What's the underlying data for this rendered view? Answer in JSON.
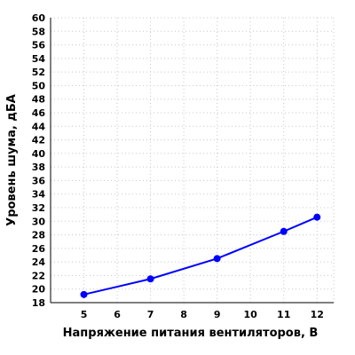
{
  "chart_data": {
    "type": "line",
    "title": "",
    "xlabel": "Напряжение питания вентиляторов, В",
    "ylabel": "Уровень шума, дБА",
    "xlim": [
      4,
      12.5
    ],
    "ylim": [
      18,
      60
    ],
    "x_ticks": [
      5,
      6,
      7,
      8,
      9,
      10,
      11,
      12
    ],
    "y_ticks": [
      18,
      20,
      22,
      24,
      26,
      28,
      30,
      32,
      34,
      36,
      38,
      40,
      42,
      44,
      46,
      48,
      50,
      52,
      54,
      56,
      58,
      60
    ],
    "grid": true,
    "legend": "none",
    "series": [
      {
        "color": "#0000ff",
        "x": [
          5,
          7,
          9,
          11,
          12
        ],
        "y": [
          19.2,
          21.5,
          24.5,
          28.5,
          30.6
        ]
      }
    ]
  }
}
